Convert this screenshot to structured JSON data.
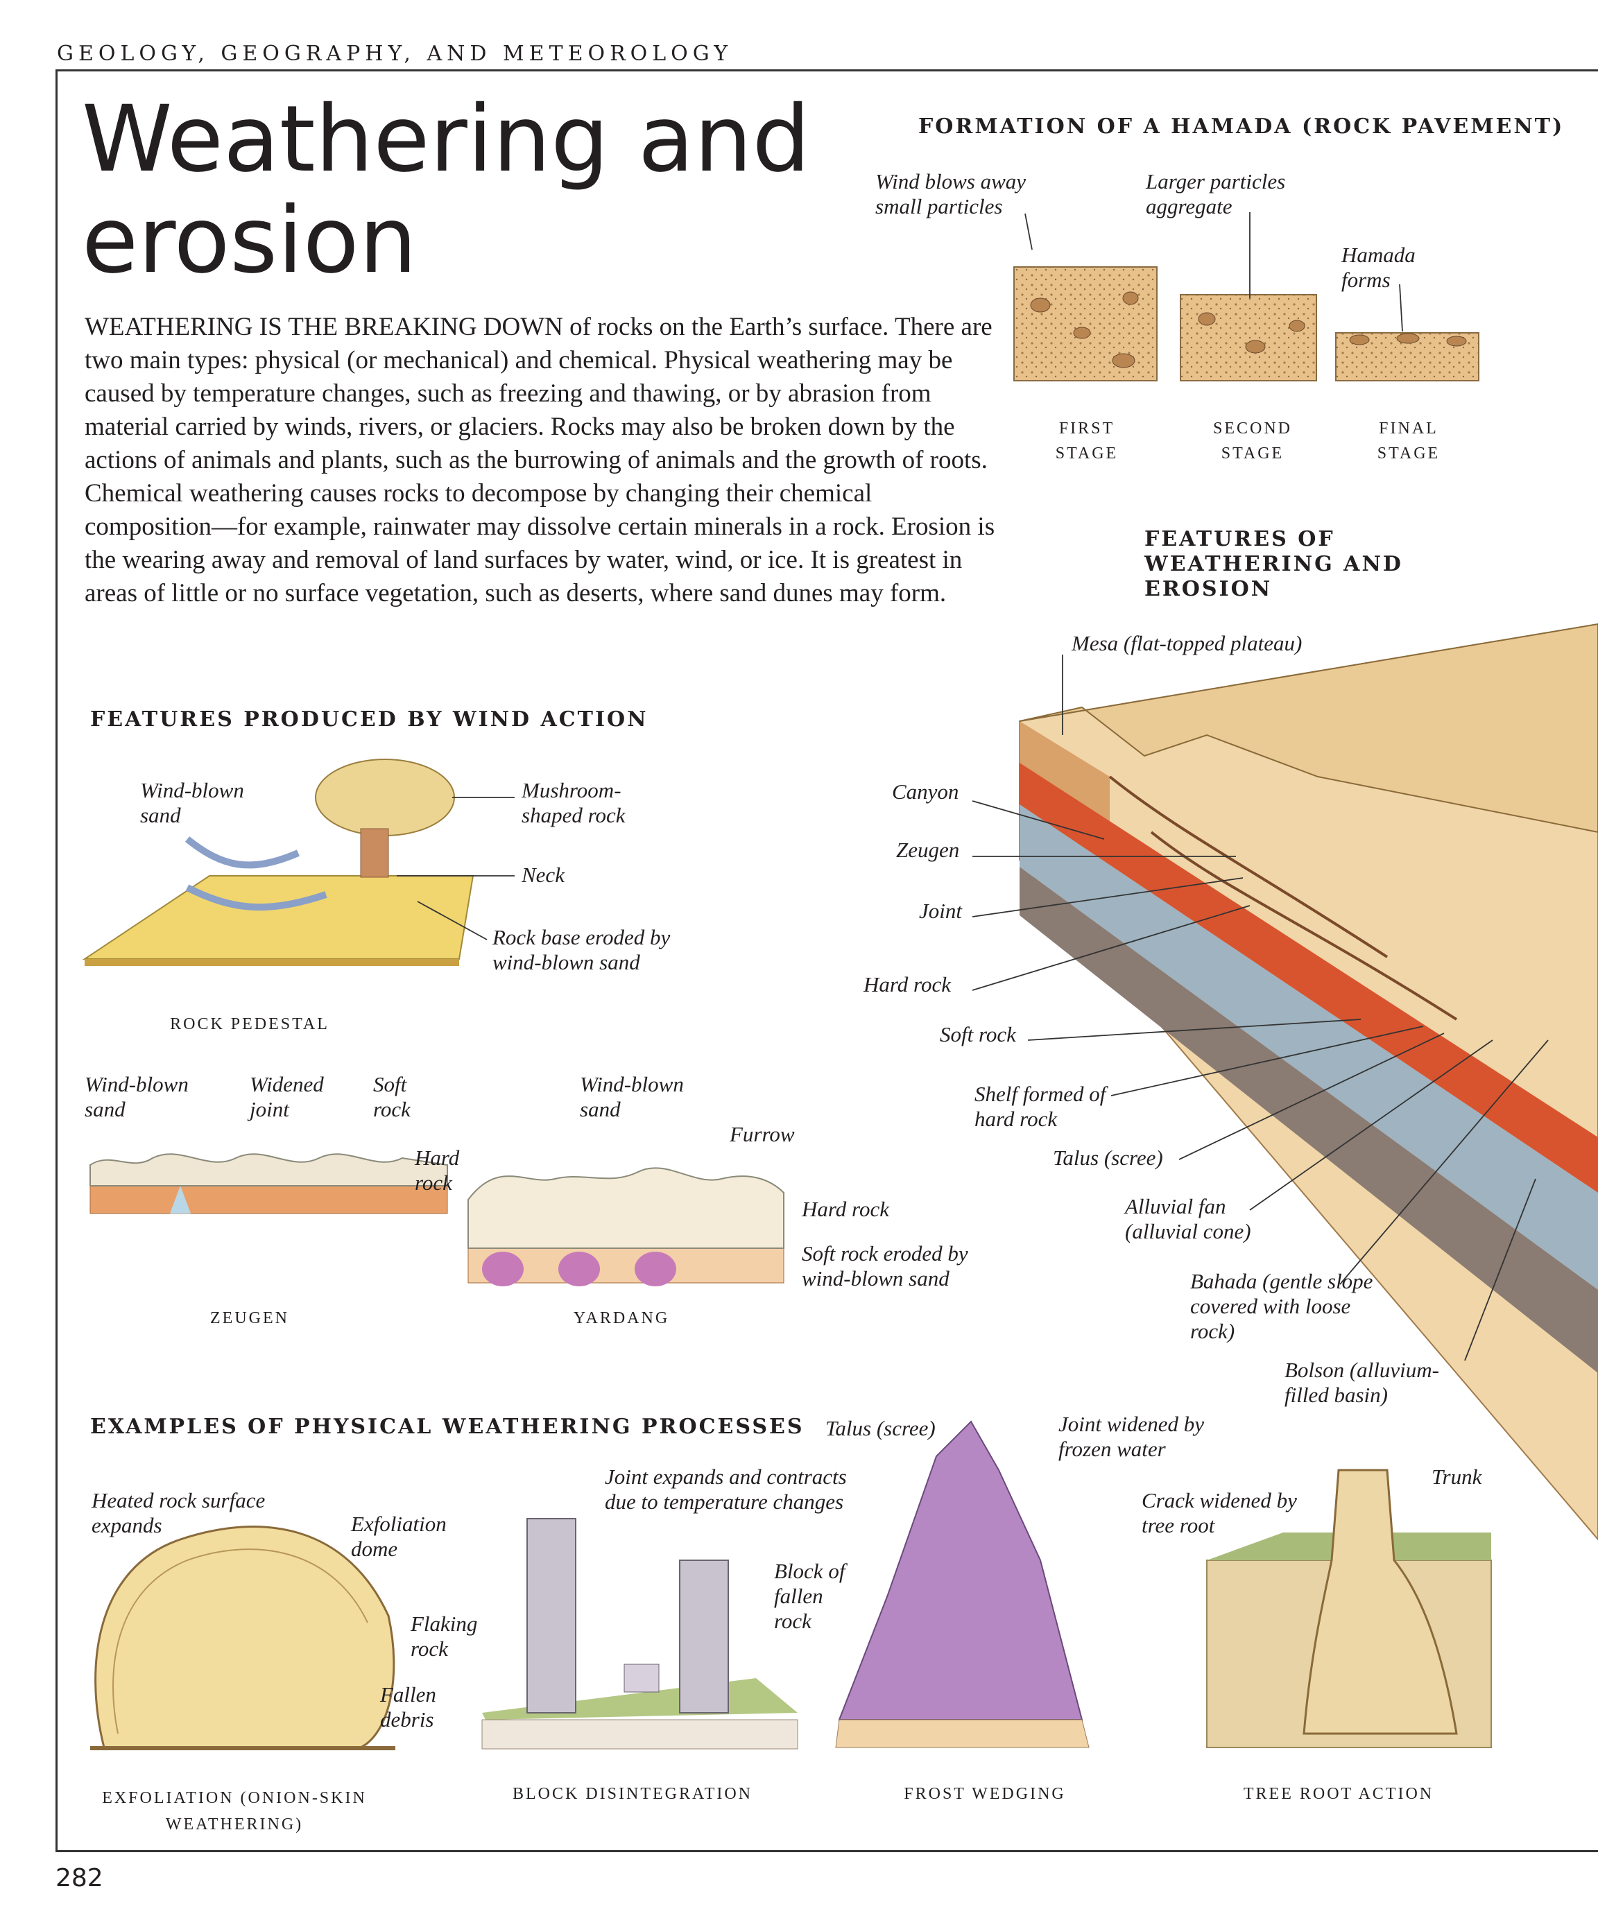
{
  "running_head": "GEOLOGY, GEOGRAPHY, AND METEOROLOGY",
  "title_line1": "Weathering and",
  "title_line2": "erosion",
  "intro": "WEATHERING IS THE BREAKING DOWN of rocks on the Earth’s surface. There are two main types: physical (or mechanical) and chemical. Physical weathering may be caused by temperature changes, such as freezing and thawing, or by abrasion from material carried by winds, rivers, or glaciers. Rocks may also be broken down by the actions of animals and plants, such as the burrowing of animals and the growth of roots. Chemical weathering causes rocks to decompose by changing their chemical composition—for example, rainwater may dissolve certain minerals in a rock. Erosion is the wearing away and removal of land surfaces by water, wind, or ice. It is greatest in areas of little or no surface vegetation, such as deserts, where sand dunes may form.",
  "hamada": {
    "heading": "FORMATION OF A HAMADA (ROCK PAVEMENT)",
    "label_wind": "Wind blows away small particles",
    "label_larger": "Larger particles aggregate",
    "label_hamada": "Hamada forms",
    "stage1": "FIRST STAGE",
    "stage2": "SECOND STAGE",
    "stage3": "FINAL STAGE"
  },
  "features": {
    "heading": "FEATURES OF WEATHERING AND EROSION",
    "labels": {
      "mesa": "Mesa (flat-topped plateau)",
      "canyon": "Canyon",
      "zeugen": "Zeugen",
      "joint": "Joint",
      "hard_rock": "Hard rock",
      "soft_rock": "Soft rock",
      "shelf": "Shelf formed of hard rock",
      "talus": "Talus (scree)",
      "alluvial": "Alluvial fan (alluvial cone)",
      "bahada": "Bahada (gentle slope covered with loose rock)",
      "bolson": "Bolson (alluvium-filled basin)"
    }
  },
  "wind": {
    "heading": "FEATURES PRODUCED BY WIND ACTION",
    "pedestal": {
      "caption": "ROCK PEDESTAL",
      "wind_blown_sand": "Wind-blown sand",
      "mushroom": "Mushroom-shaped rock",
      "neck": "Neck",
      "base": "Rock base eroded by wind-blown sand"
    },
    "zeugen": {
      "caption": "ZEUGEN",
      "wind_blown_sand": "Wind-blown sand",
      "widened_joint": "Widened joint",
      "soft_rock": "Soft rock",
      "hard_rock": "Hard rock"
    },
    "yardang": {
      "caption": "YARDANG",
      "wind_blown_sand": "Wind-blown sand",
      "furrow": "Furrow",
      "hard_rock": "Hard rock",
      "soft_rock": "Soft rock eroded by wind-blown sand"
    }
  },
  "physical": {
    "heading": "EXAMPLES OF PHYSICAL WEATHERING PROCESSES",
    "exfoliation": {
      "caption": "EXFOLIATION (ONION-SKIN WEATHERING)",
      "heated": "Heated rock surface expands",
      "dome": "Exfoliation dome",
      "flaking": "Flaking rock",
      "debris": "Fallen debris"
    },
    "block": {
      "caption": "BLOCK DISINTEGRATION",
      "joint": "Joint expands and contracts due to temperature changes",
      "fallen": "Block of fallen rock"
    },
    "frost": {
      "caption": "FROST WEDGING",
      "talus": "Talus (scree)",
      "joint": "Joint widened by frozen water"
    },
    "tree": {
      "caption": "TREE ROOT ACTION",
      "crack": "Crack widened by tree root",
      "trunk": "Trunk"
    }
  },
  "page_number": "282"
}
